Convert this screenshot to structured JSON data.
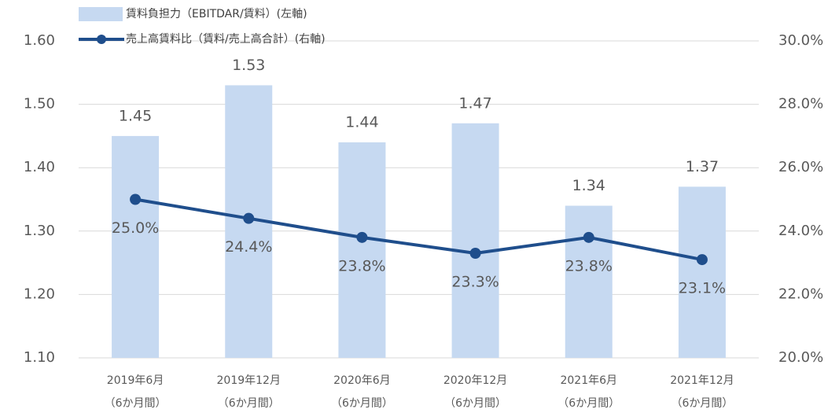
{
  "chart_data": {
    "type": "bar",
    "categories": [
      [
        "2019年6月",
        "（6か月間）"
      ],
      [
        "2019年12月",
        "（6か月間）"
      ],
      [
        "2020年6月",
        "（6か月間）"
      ],
      [
        "2020年12月",
        "（6か月間）"
      ],
      [
        "2021年6月",
        "（6か月間）"
      ],
      [
        "2021年12月",
        "（6か月間）"
      ]
    ],
    "series": [
      {
        "name": "賃料負担力（EBITDAR/賃料）(左軸)",
        "type": "bar",
        "color": "#c6d9f1",
        "values": [
          1.45,
          1.53,
          1.44,
          1.47,
          1.34,
          1.37
        ]
      },
      {
        "name": "売上高賃料比（賃料/売上高合計）(右軸)",
        "type": "line",
        "axis": "y2",
        "color": "#1f4e8c",
        "values": [
          25.0,
          24.4,
          23.8,
          23.3,
          23.8,
          23.1
        ],
        "value_labels": [
          "25.0%",
          "24.4%",
          "23.8%",
          "23.3%",
          "23.8%",
          "23.1%"
        ]
      }
    ],
    "ylim": [
      1.1,
      1.6
    ],
    "yticks": [
      {
        "value": 1.1,
        "label": "1.10"
      },
      {
        "value": 1.2,
        "label": "1.20"
      },
      {
        "value": 1.3,
        "label": "1.30"
      },
      {
        "value": 1.4,
        "label": "1.40"
      },
      {
        "value": 1.5,
        "label": "1.50"
      },
      {
        "value": 1.6,
        "label": "1.60"
      }
    ],
    "y2lim": [
      20,
      30
    ],
    "y2ticks": [
      {
        "value": 20,
        "label": "20.0%"
      },
      {
        "value": 22,
        "label": "22.0%"
      },
      {
        "value": 24,
        "label": "24.0%"
      },
      {
        "value": 26,
        "label": "26.0%"
      },
      {
        "value": 28,
        "label": "28.0%"
      },
      {
        "value": 30,
        "label": "30.0%"
      }
    ],
    "grid": true,
    "legend": "top-left"
  }
}
